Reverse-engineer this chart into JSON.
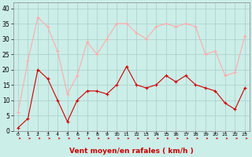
{
  "x": [
    0,
    1,
    2,
    3,
    4,
    5,
    6,
    7,
    8,
    9,
    10,
    11,
    12,
    13,
    14,
    15,
    16,
    17,
    18,
    19,
    20,
    21,
    22,
    23
  ],
  "wind_avg": [
    1,
    4,
    20,
    17,
    10,
    3,
    10,
    13,
    13,
    12,
    15,
    21,
    15,
    14,
    15,
    18,
    16,
    18,
    15,
    14,
    13,
    9,
    7,
    14
  ],
  "wind_gust": [
    6,
    23,
    37,
    34,
    26,
    12,
    18,
    29,
    25,
    30,
    35,
    35,
    32,
    30,
    34,
    35,
    34,
    35,
    34,
    25,
    26,
    18,
    19,
    31
  ],
  "avg_color": "#cc0000",
  "gust_color": "#ffaaaa",
  "bg_color": "#cceee8",
  "grid_color": "#aacccc",
  "xlabel": "Vent moyen/en rafales ( km/h )",
  "xlabel_color": "#cc0000",
  "ylim": [
    0,
    42
  ],
  "yticks": [
    0,
    5,
    10,
    15,
    20,
    25,
    30,
    35,
    40
  ],
  "marker": "+"
}
